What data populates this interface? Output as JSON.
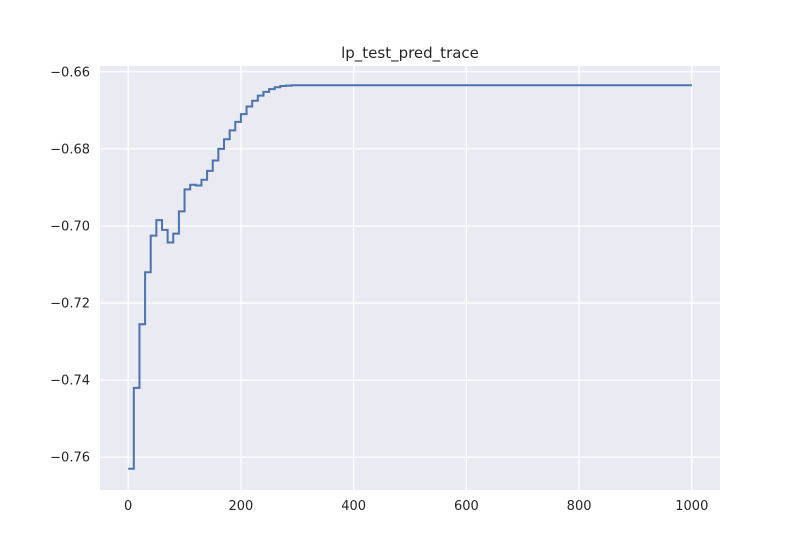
{
  "chart_data": {
    "type": "line",
    "title": "lp_test_pred_trace",
    "xlabel": "",
    "ylabel": "",
    "xlim": [
      -50,
      1050
    ],
    "ylim": [
      -0.7685,
      -0.6585
    ],
    "xticks": [
      0,
      200,
      400,
      600,
      800,
      1000
    ],
    "xtick_labels": [
      "0",
      "200",
      "400",
      "600",
      "800",
      "1000"
    ],
    "yticks": [
      -0.76,
      -0.74,
      -0.72,
      -0.7,
      -0.68,
      -0.66
    ],
    "ytick_labels": [
      "−0.76",
      "−0.74",
      "−0.72",
      "−0.70",
      "−0.68",
      "−0.66"
    ],
    "grid": true,
    "step": "post",
    "series": [
      {
        "color": "#4c72b0",
        "x": [
          0,
          10,
          20,
          30,
          40,
          50,
          60,
          70,
          80,
          90,
          100,
          110,
          120,
          130,
          140,
          150,
          160,
          170,
          180,
          190,
          200,
          210,
          220,
          230,
          240,
          250,
          260,
          270,
          280,
          290,
          1000
        ],
        "y": [
          -0.763,
          -0.742,
          -0.7255,
          -0.712,
          -0.7025,
          -0.6985,
          -0.701,
          -0.7043,
          -0.702,
          -0.6962,
          -0.6905,
          -0.6893,
          -0.6895,
          -0.688,
          -0.6857,
          -0.683,
          -0.68,
          -0.6775,
          -0.6752,
          -0.673,
          -0.671,
          -0.669,
          -0.6675,
          -0.6662,
          -0.6652,
          -0.6645,
          -0.664,
          -0.6637,
          -0.6636,
          -0.6635,
          -0.6635
        ]
      }
    ]
  }
}
